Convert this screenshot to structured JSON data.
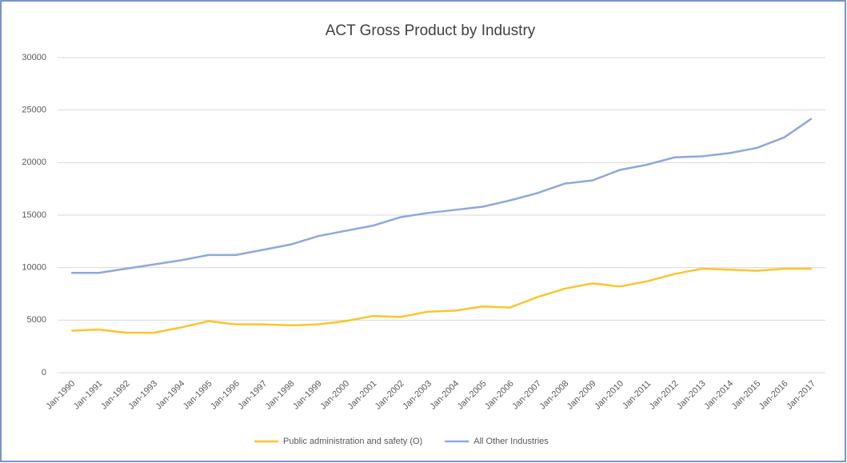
{
  "chart_data": {
    "type": "line",
    "title": "ACT Gross Product by Industry",
    "categories": [
      "Jan-1990",
      "Jan-1991",
      "Jan-1992",
      "Jan-1993",
      "Jan-1994",
      "Jan-1995",
      "Jan-1996",
      "Jan-1997",
      "Jan-1998",
      "Jan-1999",
      "Jan-2000",
      "Jan-2001",
      "Jan-2002",
      "Jan-2003",
      "Jan-2004",
      "Jan-2005",
      "Jan-2006",
      "Jan-2007",
      "Jan-2008",
      "Jan-2009",
      "Jan-2010",
      "Jan-2011",
      "Jan-2012",
      "Jan-2013",
      "Jan-2014",
      "Jan-2015",
      "Jan-2016",
      "Jan-2017"
    ],
    "series": [
      {
        "name": "Public administration and safety (O)",
        "color": "#fbc52c",
        "values": [
          4000,
          4100,
          3800,
          3800,
          4300,
          4900,
          4600,
          4600,
          4500,
          4600,
          4900,
          5400,
          5300,
          5800,
          5900,
          6300,
          6200,
          7200,
          8000,
          8500,
          8200,
          8700,
          9400,
          9900,
          9800,
          9700,
          9900,
          9900
        ]
      },
      {
        "name": "All Other Industries",
        "color": "#8fa8dc",
        "values": [
          9500,
          9500,
          9900,
          10300,
          10700,
          11200,
          11200,
          11700,
          12200,
          13000,
          13500,
          14000,
          14800,
          15200,
          15500,
          15800,
          16400,
          17100,
          18000,
          18300,
          19300,
          19800,
          20500,
          20600,
          20900,
          21400,
          22400,
          24200
        ]
      }
    ],
    "ylim": [
      0,
      30000
    ],
    "yticks": [
      0,
      5000,
      10000,
      15000,
      20000,
      25000,
      30000
    ],
    "grid": true,
    "legend": "bottom"
  }
}
